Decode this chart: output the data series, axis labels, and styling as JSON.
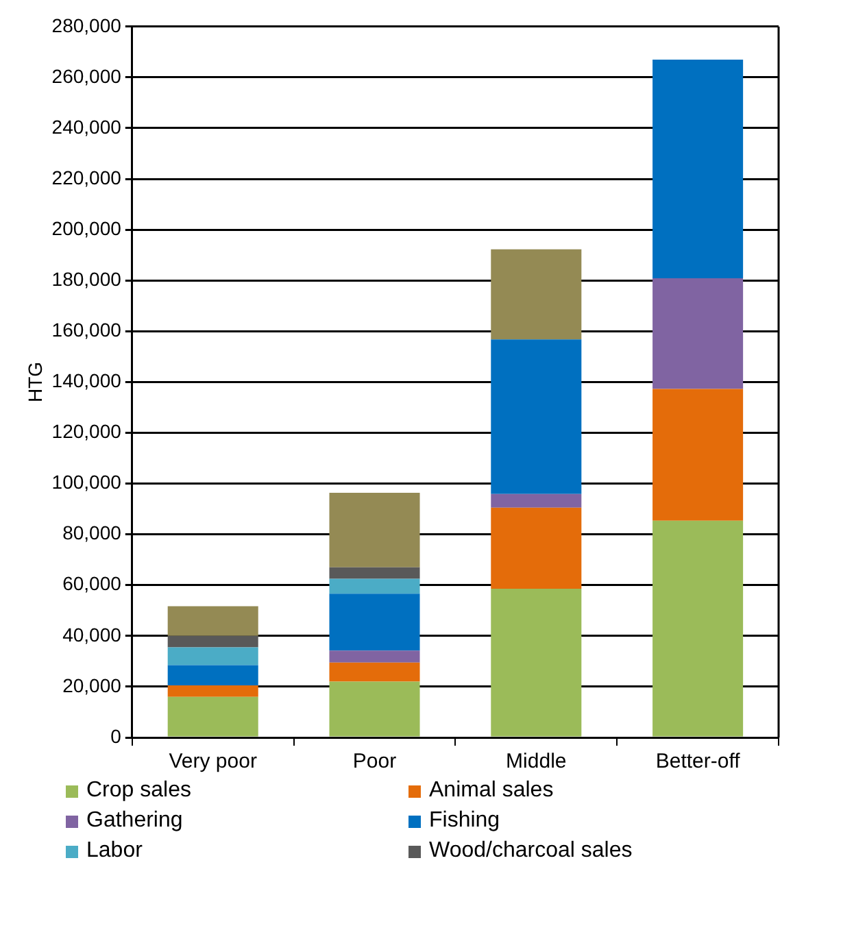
{
  "chart_data": {
    "type": "bar",
    "stacked": true,
    "ylabel": "HTG",
    "categories": [
      "Very poor",
      "Poor",
      "Middle",
      "Better-off"
    ],
    "ylim": [
      0,
      280000
    ],
    "yticks": [
      {
        "value": 0,
        "label": "0"
      },
      {
        "value": 20000,
        "label": "20,000"
      },
      {
        "value": 40000,
        "label": "40,000"
      },
      {
        "value": 60000,
        "label": "60,000"
      },
      {
        "value": 80000,
        "label": "80,000"
      },
      {
        "value": 100000,
        "label": "100,000"
      },
      {
        "value": 120000,
        "label": "120,000"
      },
      {
        "value": 140000,
        "label": "140,000"
      },
      {
        "value": 160000,
        "label": "160,000"
      },
      {
        "value": 180000,
        "label": "180,000"
      },
      {
        "value": 200000,
        "label": "200,000"
      },
      {
        "value": 220000,
        "label": "220,000"
      },
      {
        "value": 240000,
        "label": "240,000"
      },
      {
        "value": 260000,
        "label": "260,000"
      },
      {
        "value": 280000,
        "label": "280,000"
      }
    ],
    "grid": "y",
    "legend": "bottom",
    "series": [
      {
        "name": "Crop sales",
        "color": "#9bbb59",
        "values": [
          16000,
          22000,
          58600,
          85400
        ]
      },
      {
        "name": "Animal sales",
        "color": "#e46c0a",
        "values": [
          4500,
          7500,
          31900,
          51900
        ]
      },
      {
        "name": "Gathering",
        "color": "#8064a2",
        "values": [
          0,
          4700,
          5400,
          43600
        ]
      },
      {
        "name": "Fishing",
        "color": "#0070c0",
        "values": [
          8000,
          22400,
          60900,
          86100
        ]
      },
      {
        "name": "Labor",
        "color": "#4bacc6",
        "values": [
          7000,
          5900,
          0,
          0
        ]
      },
      {
        "name": "Wood/charcoal sales",
        "color": "#595959",
        "values": [
          4500,
          4500,
          0,
          0
        ]
      },
      {
        "color": "#948a54",
        "values": [
          11700,
          29400,
          35500,
          0
        ]
      }
    ]
  }
}
